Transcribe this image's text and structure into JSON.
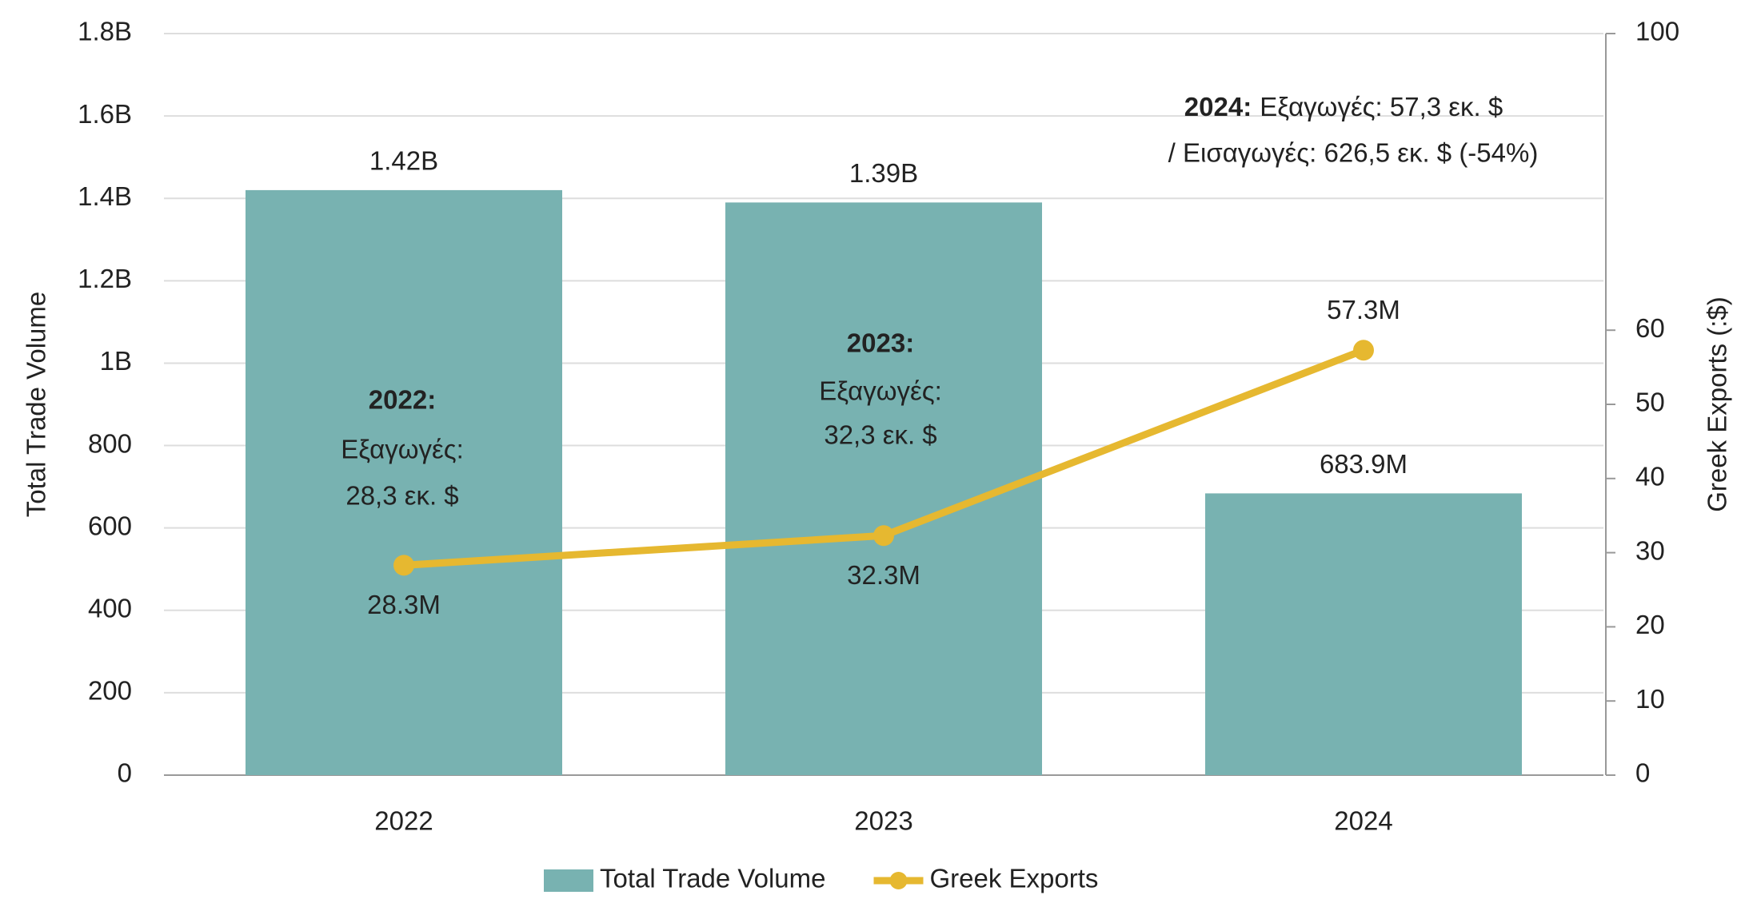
{
  "chart_data": {
    "type": "bar",
    "y_label": "Total Trade Volume",
    "y2_label": "Greek Exports (:$)",
    "categories": [
      "2022",
      "2023",
      "2024"
    ],
    "series": [
      {
        "name": "Total Trade Volume",
        "type": "bar",
        "color": "#78b2b1",
        "values": [
          1420000000,
          1390000000,
          683900000
        ],
        "value_labels": [
          "1.42B",
          "1.39B",
          "683.9M"
        ]
      },
      {
        "name": "Greek Exports",
        "type": "line",
        "axis": "y2",
        "color": "#e6b830",
        "values": [
          28.3,
          32.3,
          57.3
        ],
        "value_labels": [
          "28.3M",
          "32.3M",
          "57.3M"
        ]
      }
    ],
    "ylim": [
      0,
      1800000000
    ],
    "yticks": [
      0,
      {
        "value": 200000000,
        "label": "200"
      },
      {
        "value": 400000000,
        "label": "400"
      },
      {
        "value": 600000000,
        "label": "600"
      },
      {
        "value": 800000000,
        "label": "800"
      },
      {
        "value": 1000000000,
        "label": "1B"
      },
      {
        "value": 1200000000,
        "label": "1.2B"
      },
      {
        "value": 1400000000,
        "label": "1.4B"
      },
      {
        "value": 1600000000,
        "label": "1.6B"
      },
      {
        "value": 1800000000,
        "label": "1.8B"
      }
    ],
    "y2lim": [
      0,
      100
    ],
    "y2ticks": [
      0,
      10,
      20,
      30,
      40,
      50,
      60,
      100
    ],
    "grid": true,
    "legend": "bottom",
    "annotations": [
      {
        "label": "2022:",
        "text": [
          "Εξαγωγές:",
          "28,3 εκ. $"
        ]
      },
      {
        "label": "2023:",
        "text": [
          "Εξαγωγές:",
          "32,3 εκ. $"
        ]
      },
      {
        "label": "2024:",
        "text": [
          "Εξαγωγές: 57,3 εκ. $",
          "/ Εισαγωγές: 626,5 εκ. $ (-54%)"
        ]
      }
    ]
  }
}
